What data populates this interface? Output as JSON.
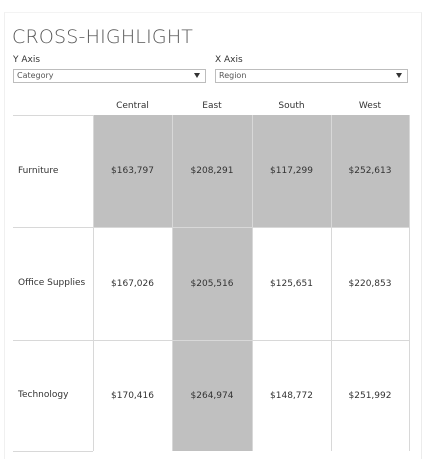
{
  "title": "CROSS-HIGHLIGHT",
  "y_axis": {
    "label": "Y Axis",
    "selected": "Category"
  },
  "x_axis": {
    "label": "X Axis",
    "selected": "Region"
  },
  "columns": [
    "Central",
    "East",
    "South",
    "West"
  ],
  "rows": [
    {
      "label": "Furniture",
      "values": [
        "$163,797",
        "$208,291",
        "$117,299",
        "$252,613"
      ],
      "highlighted": [
        true,
        true,
        true,
        true
      ]
    },
    {
      "label": "Office Supplies",
      "values": [
        "$167,026",
        "$205,516",
        "$125,651",
        "$220,853"
      ],
      "highlighted": [
        false,
        true,
        false,
        false
      ]
    },
    {
      "label": "Technology",
      "values": [
        "$170,416",
        "$264,974",
        "$148,772",
        "$251,992"
      ],
      "highlighted": [
        false,
        true,
        false,
        false
      ]
    }
  ],
  "colors": {
    "highlight": "#c0c0c0",
    "normal": "#ffffff",
    "grid": "#d8d8d8"
  }
}
